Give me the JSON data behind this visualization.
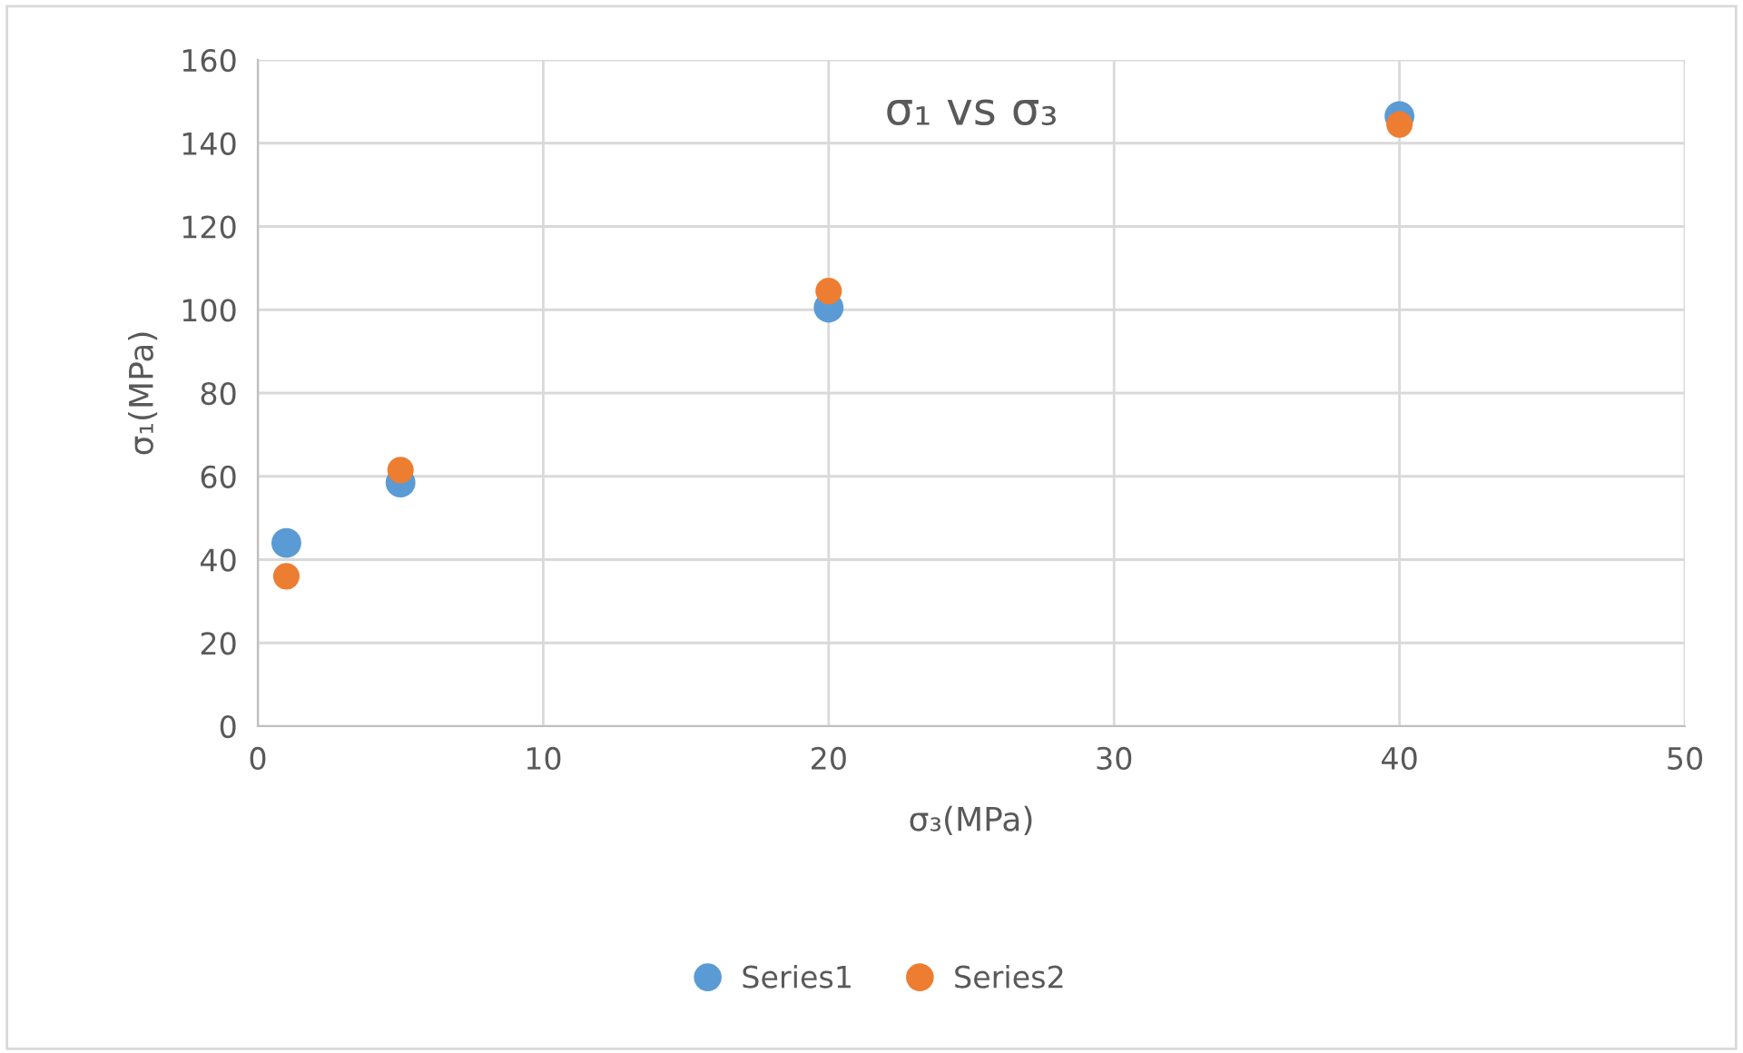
{
  "chart_data": {
    "type": "scatter",
    "title": "σ₁ vs σ₃",
    "xlabel": "σ₃(MPa)",
    "ylabel": "σ₁(MPa)",
    "x": [
      1,
      5,
      20,
      40
    ],
    "series": [
      {
        "name": "Series1",
        "color": "#5b9bd5",
        "values": [
          44,
          58.5,
          100.5,
          146.5
        ]
      },
      {
        "name": "Series2",
        "color": "#ed7d31",
        "values": [
          36,
          61.5,
          104.5,
          144.5
        ]
      }
    ],
    "xlim": [
      0,
      50
    ],
    "xticks": [
      0,
      10,
      20,
      30,
      40,
      50
    ],
    "ylim": [
      0,
      160
    ],
    "yticks": [
      0,
      20,
      40,
      60,
      80,
      100,
      120,
      140,
      160
    ],
    "grid": true,
    "legend": "bottom",
    "marker": "circle"
  }
}
